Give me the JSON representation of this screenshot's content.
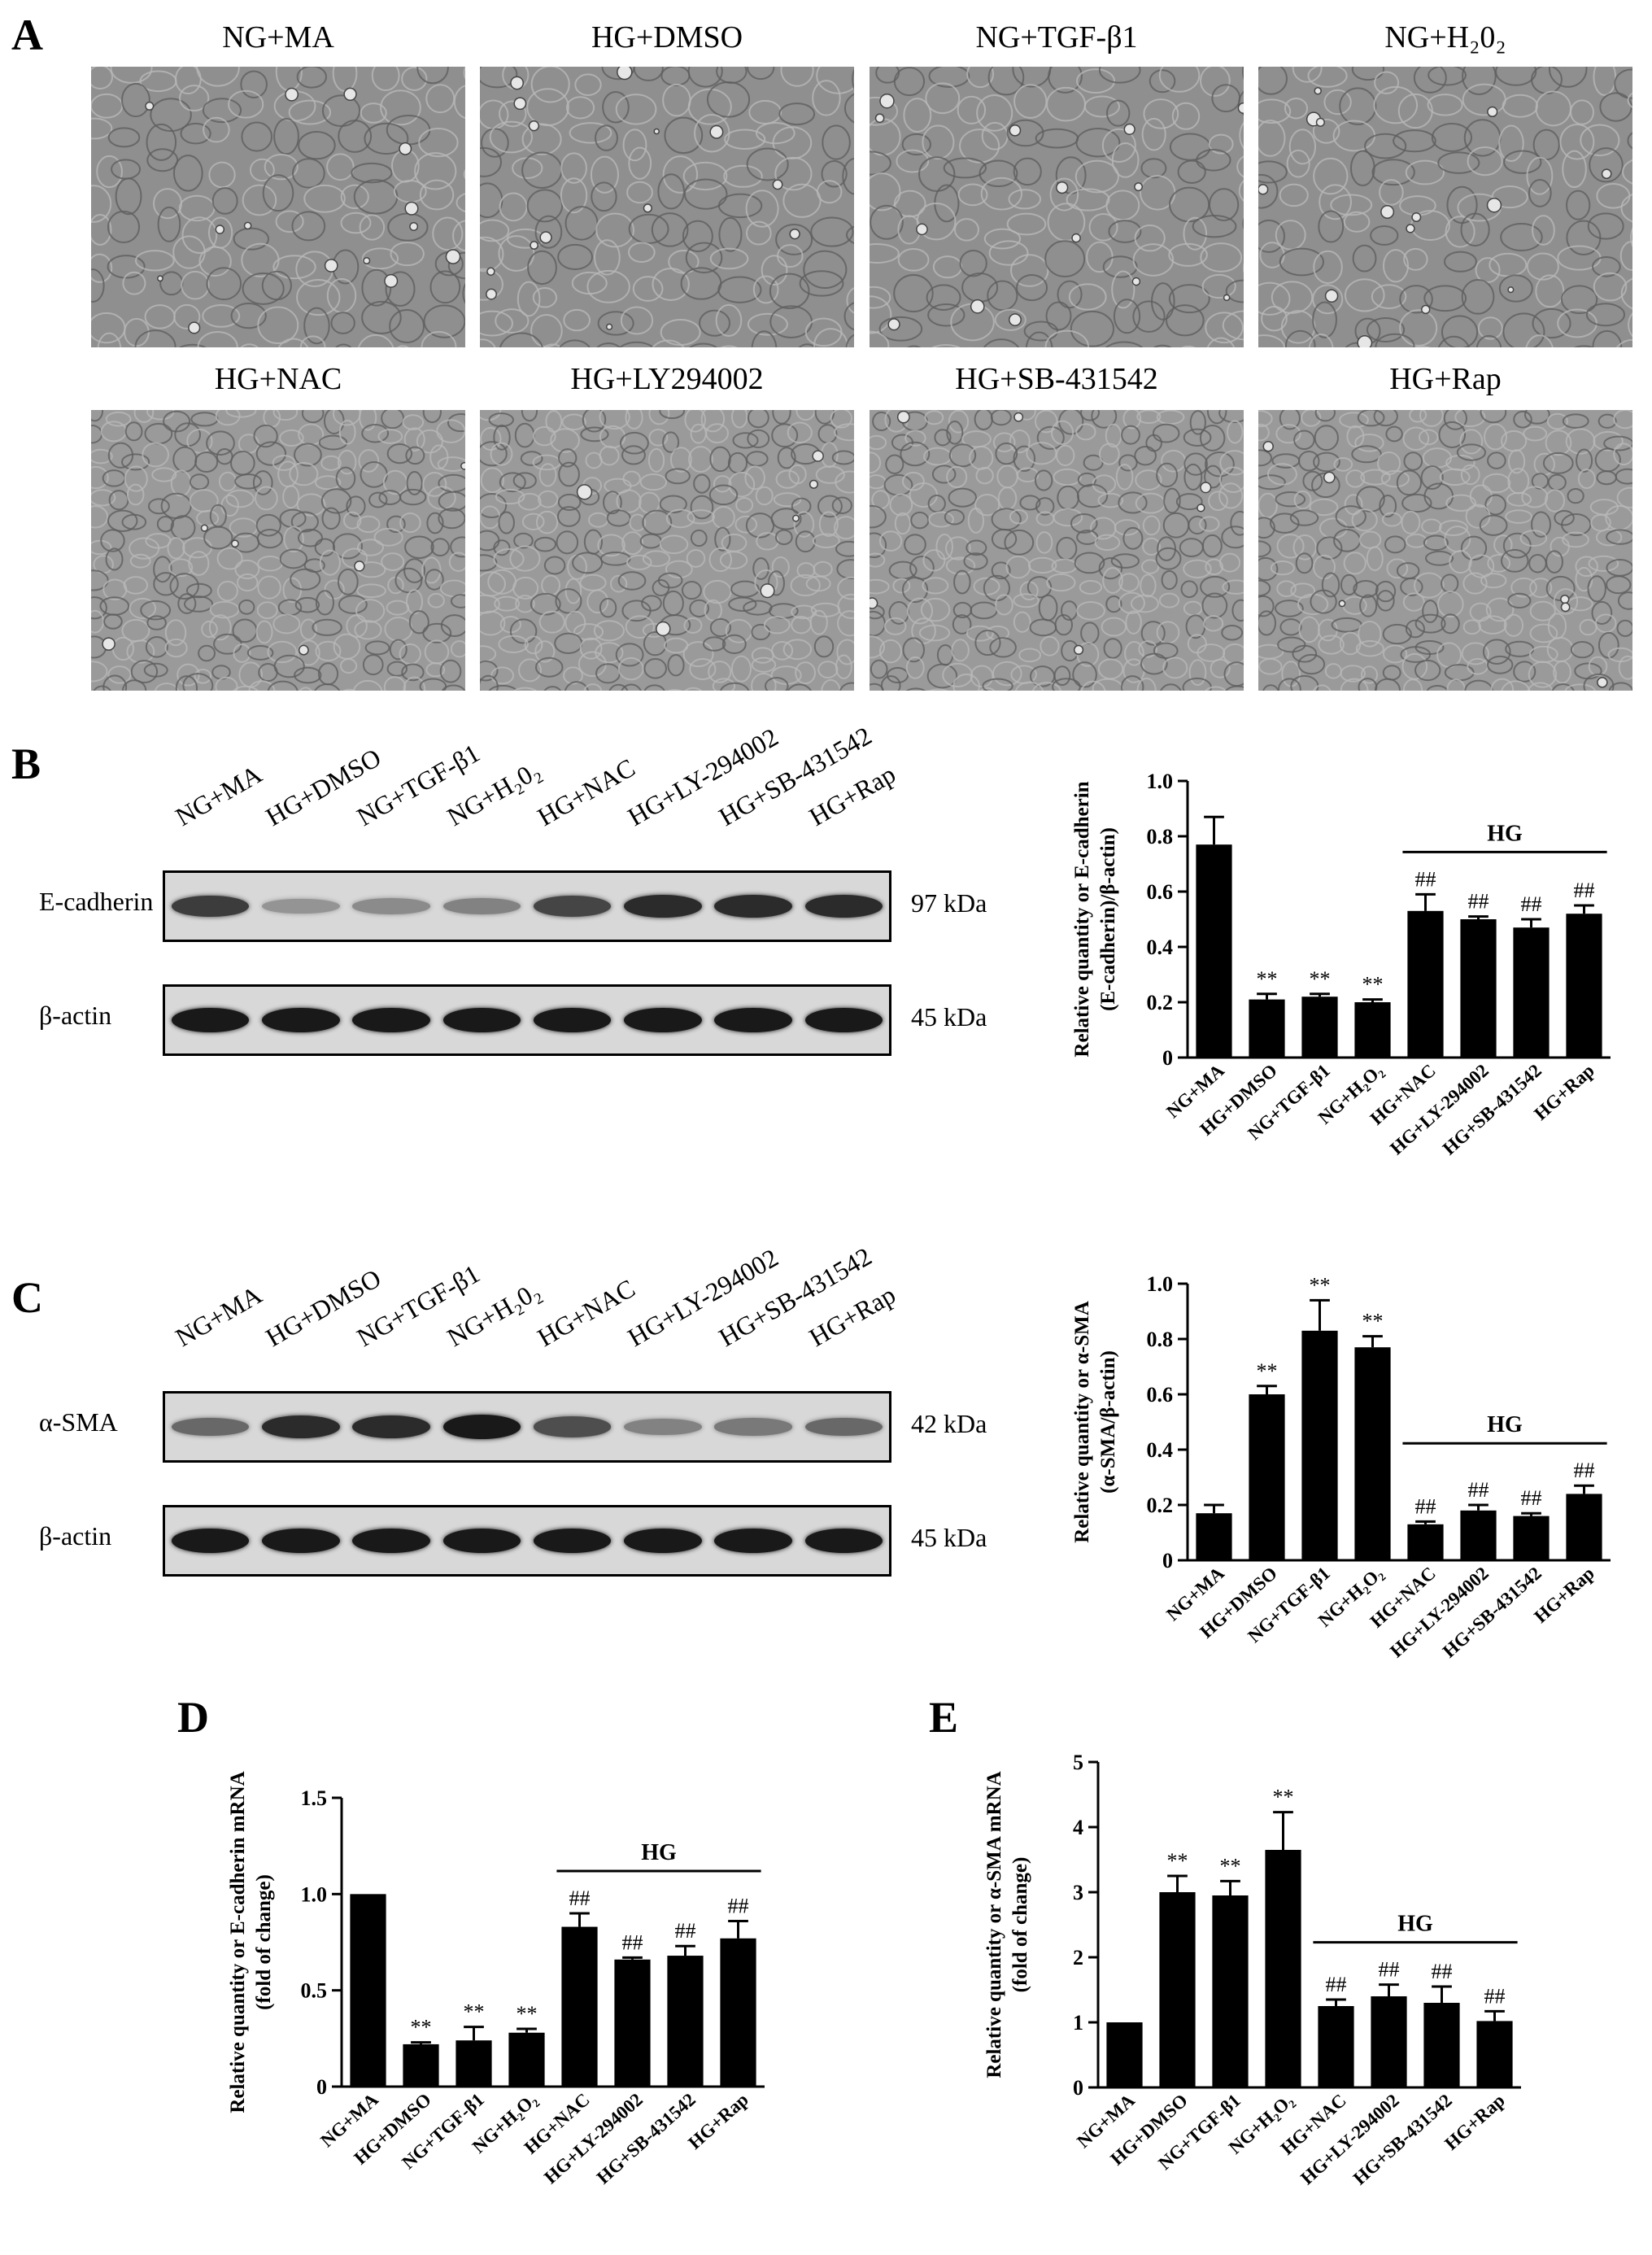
{
  "panels": {
    "A": "A",
    "B": "B",
    "C": "C",
    "D": "D",
    "E": "E"
  },
  "micrographs": {
    "row1": [
      "NG+MA",
      "HG+DMSO",
      "NG+TGF-β1",
      "NG+H₂0₂"
    ],
    "row2": [
      "HG+NAC",
      "HG+LY294002",
      "HG+SB-431542",
      "HG+Rap"
    ]
  },
  "blots": {
    "lanes": [
      "NG+MA",
      "HG+DMSO",
      "NG+TGF-β1",
      "NG+H₂0₂",
      "HG+NAC",
      "HG+LY-294002",
      "HG+SB-431542",
      "HG+Rap"
    ],
    "B": {
      "top": {
        "name": "E-cadherin",
        "kda": "97 kDa",
        "intensity": [
          0.8,
          0.3,
          0.35,
          0.4,
          0.75,
          0.9,
          0.9,
          0.9
        ]
      },
      "bottom": {
        "name": "β-actin",
        "kda": "45 kDa",
        "intensity": [
          1,
          1,
          1,
          1,
          1,
          1,
          1,
          1
        ]
      }
    },
    "C": {
      "top": {
        "name": "α-SMA",
        "kda": "42 kDa",
        "intensity": [
          0.55,
          0.9,
          0.9,
          1.0,
          0.7,
          0.4,
          0.45,
          0.55
        ]
      },
      "bottom": {
        "name": "β-actin",
        "kda": "45 kDa",
        "intensity": [
          1,
          1,
          1,
          1,
          1,
          1,
          1,
          1
        ]
      }
    }
  },
  "chart_data": [
    {
      "id": "B",
      "type": "bar",
      "categories": [
        "NG+MA",
        "HG+DMSO",
        "NG+TGF-β1",
        "NG+H₂O₂",
        "HG+NAC",
        "HG+LY-294002",
        "HG+SB-431542",
        "HG+Rap"
      ],
      "values": [
        0.77,
        0.21,
        0.22,
        0.2,
        0.53,
        0.5,
        0.47,
        0.52
      ],
      "errors": [
        0.1,
        0.02,
        0.01,
        0.01,
        0.06,
        0.01,
        0.03,
        0.03
      ],
      "annotations": [
        "",
        "**",
        "**",
        "**",
        "##",
        "##",
        "##",
        "##"
      ],
      "ylabel": [
        "Relative quantity or E-cadherin",
        "(E-cadherin)/β-actin)"
      ],
      "ylim": [
        0,
        1.0
      ],
      "yticks": [
        "0",
        "0.2",
        "0.4",
        "0.6",
        "0.8",
        "1.0"
      ],
      "group_label": "HG"
    },
    {
      "id": "C",
      "type": "bar",
      "categories": [
        "NG+MA",
        "HG+DMSO",
        "NG+TGF-β1",
        "NG+H₂O₂",
        "HG+NAC",
        "HG+LY-294002",
        "HG+SB-431542",
        "HG+Rap"
      ],
      "values": [
        0.17,
        0.6,
        0.83,
        0.77,
        0.13,
        0.18,
        0.16,
        0.24
      ],
      "errors": [
        0.03,
        0.03,
        0.11,
        0.04,
        0.01,
        0.02,
        0.01,
        0.03
      ],
      "annotations": [
        "",
        "**",
        "**",
        "**",
        "##",
        "##",
        "##",
        "##"
      ],
      "ylabel": [
        "Relative quantity or α-SMA",
        "(α-SMA/β-actin)"
      ],
      "ylim": [
        0,
        1.0
      ],
      "yticks": [
        "0",
        "0.2",
        "0.4",
        "0.6",
        "0.8",
        "1.0"
      ],
      "group_label": "HG"
    },
    {
      "id": "D",
      "type": "bar",
      "categories": [
        "NG+MA",
        "HG+DMSO",
        "NG+TGF-β1",
        "NG+H₂O₂",
        "HG+NAC",
        "HG+LY-294002",
        "HG+SB-431542",
        "HG+Rap"
      ],
      "values": [
        1.0,
        0.22,
        0.24,
        0.28,
        0.83,
        0.66,
        0.68,
        0.77
      ],
      "errors": [
        0,
        0.01,
        0.07,
        0.02,
        0.07,
        0.01,
        0.05,
        0.09
      ],
      "annotations": [
        "",
        "**",
        "**",
        "**",
        "##",
        "##",
        "##",
        "##"
      ],
      "ylabel": [
        "Relative quantity or E-cadherin mRNA",
        "(fold of change)"
      ],
      "ylim": [
        0,
        1.5
      ],
      "yticks": [
        "0",
        "0.5",
        "1.0",
        "1.5"
      ],
      "group_label": "HG"
    },
    {
      "id": "E",
      "type": "bar",
      "categories": [
        "NG+MA",
        "HG+DMSO",
        "NG+TGF-β1",
        "NG+H₂O₂",
        "HG+NAC",
        "HG+LY-294002",
        "HG+SB-431542",
        "HG+Rap"
      ],
      "values": [
        1.0,
        3.0,
        2.95,
        3.65,
        1.25,
        1.4,
        1.3,
        1.02
      ],
      "errors": [
        0,
        0.25,
        0.22,
        0.58,
        0.1,
        0.18,
        0.25,
        0.15
      ],
      "annotations": [
        "",
        "**",
        "**",
        "**",
        "##",
        "##",
        "##",
        "##"
      ],
      "ylabel": [
        "Relative quantity or α-SMA mRNA",
        "(fold of change)"
      ],
      "ylim": [
        0,
        5
      ],
      "yticks": [
        "0",
        "1",
        "2",
        "3",
        "4",
        "5"
      ],
      "group_label": "HG"
    }
  ]
}
